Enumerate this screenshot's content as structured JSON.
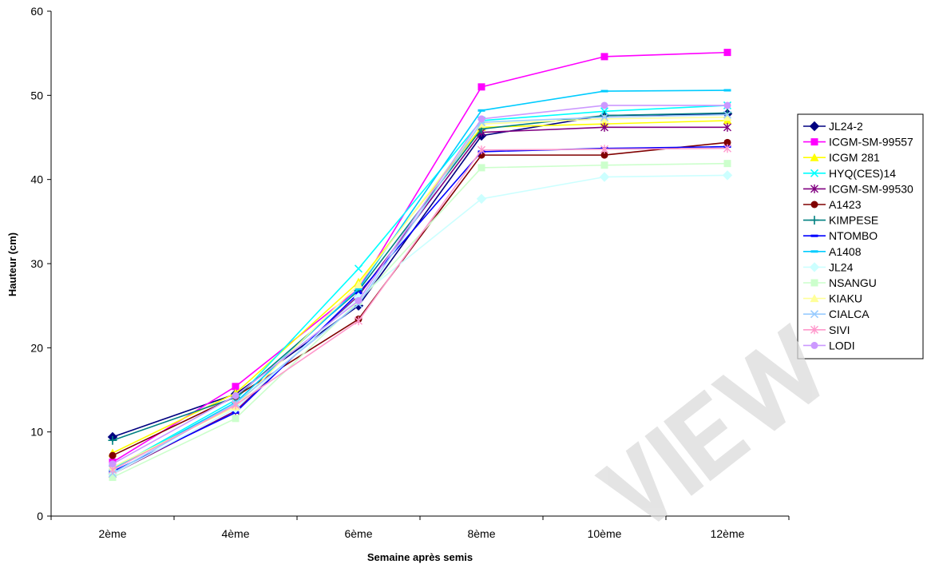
{
  "chart_data": {
    "type": "line",
    "title": "",
    "xlabel": "Semaine après semis",
    "ylabel": "Hauteur (cm)",
    "ylim": [
      0,
      60
    ],
    "yticks": [
      0,
      10,
      20,
      30,
      40,
      50,
      60
    ],
    "grid": false,
    "legend_position": "right",
    "categories": [
      "2ème",
      "4ème",
      "6ème",
      "8ème",
      "10ème",
      "12ème"
    ],
    "series": [
      {
        "name": "JL24-2",
        "color": "#000080",
        "marker": "diamond",
        "values": [
          9.4,
          14.5,
          25.0,
          45.2,
          47.6,
          47.8
        ]
      },
      {
        "name": "ICGM-SM-99557",
        "color": "#FF00FF",
        "marker": "square",
        "values": [
          6.4,
          15.4,
          27.0,
          51.0,
          54.6,
          55.1
        ]
      },
      {
        "name": "ICGM 281",
        "color": "#FFFF00",
        "marker": "triangle",
        "values": [
          7.5,
          14.6,
          27.8,
          46.2,
          46.6,
          47.0
        ]
      },
      {
        "name": "HYQ(CES)14",
        "color": "#00FFFF",
        "marker": "x",
        "values": [
          5.6,
          13.8,
          29.4,
          47.0,
          48.1,
          48.8
        ]
      },
      {
        "name": "ICGM-SM-99530",
        "color": "#800080",
        "marker": "star",
        "values": [
          5.0,
          12.5,
          26.2,
          45.6,
          46.2,
          46.2
        ]
      },
      {
        "name": "A1423",
        "color": "#800000",
        "marker": "circle",
        "values": [
          7.2,
          14.2,
          23.4,
          42.9,
          42.9,
          44.4
        ]
      },
      {
        "name": "KIMPESE",
        "color": "#008080",
        "marker": "plus",
        "values": [
          9.0,
          14.1,
          26.8,
          46.0,
          47.6,
          47.9
        ]
      },
      {
        "name": "NTOMBO",
        "color": "#0000FF",
        "marker": "dash",
        "values": [
          5.3,
          12.3,
          26.5,
          43.3,
          43.7,
          43.9
        ]
      },
      {
        "name": "A1408",
        "color": "#00CCFF",
        "marker": "dash",
        "values": [
          5.5,
          13.5,
          27.0,
          48.2,
          50.5,
          50.6
        ]
      },
      {
        "name": "JL24",
        "color": "#CCFFFF",
        "marker": "diamond",
        "values": [
          5.0,
          12.8,
          26.0,
          37.7,
          40.3,
          40.5
        ]
      },
      {
        "name": "NSANGU",
        "color": "#CCFFCC",
        "marker": "square",
        "values": [
          4.6,
          11.6,
          25.5,
          41.4,
          41.7,
          41.9
        ]
      },
      {
        "name": "KIAKU",
        "color": "#FFFF99",
        "marker": "triangle",
        "values": [
          5.8,
          13.0,
          27.5,
          46.6,
          47.2,
          47.4
        ]
      },
      {
        "name": "CIALCA",
        "color": "#99CCFF",
        "marker": "x",
        "values": [
          5.1,
          13.4,
          25.2,
          46.8,
          47.4,
          47.7
        ]
      },
      {
        "name": "SIVI",
        "color": "#FF99CC",
        "marker": "star",
        "values": [
          5.5,
          13.2,
          23.2,
          43.5,
          43.6,
          43.7
        ]
      },
      {
        "name": "LODI",
        "color": "#CC99FF",
        "marker": "circle",
        "values": [
          6.2,
          14.3,
          25.6,
          47.2,
          48.8,
          48.8
        ]
      }
    ]
  }
}
